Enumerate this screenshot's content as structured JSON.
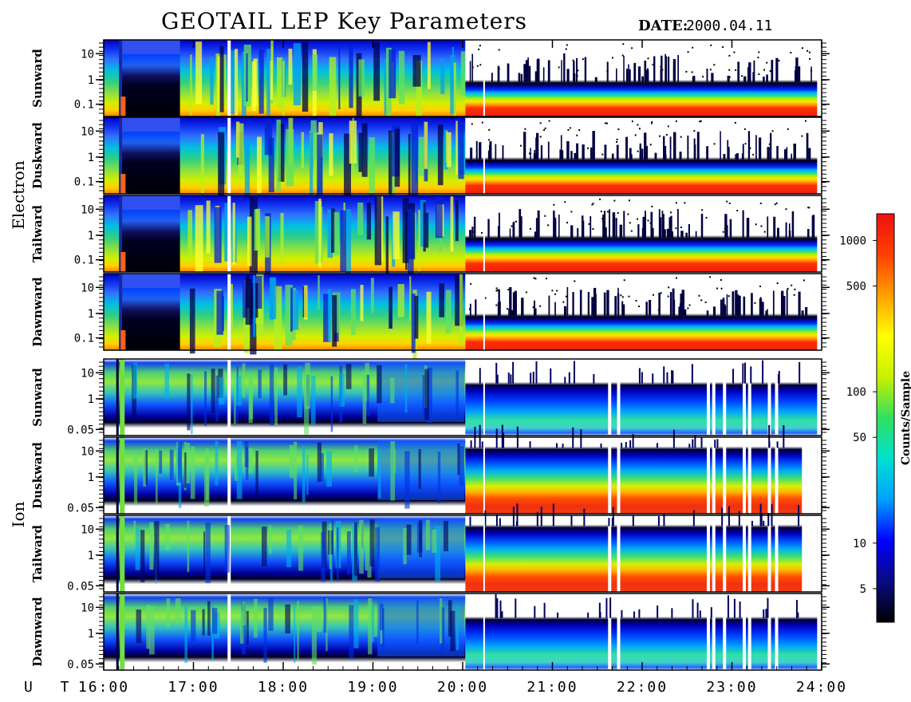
{
  "title": "GEOTAIL LEP Key Parameters",
  "date_label": "DATE:",
  "date_value": "2000.04.11",
  "time_axis_label": "U T",
  "colorbar_label": "Counts/Sample",
  "colors": {
    "colormap": [
      "#000000",
      "#0a0a80",
      "#0000ff",
      "#00a0ff",
      "#00e0d0",
      "#30e060",
      "#c8f000",
      "#ffff00",
      "#ffa000",
      "#ff4000",
      "#ee1010"
    ],
    "frame": "#000000",
    "background": "#ffffff"
  },
  "chart_data": {
    "type": "heatmap",
    "x_axis": {
      "range_hours": [
        16,
        24
      ],
      "ticks": [
        "16:00",
        "17:00",
        "18:00",
        "19:00",
        "20:00",
        "21:00",
        "22:00",
        "23:00",
        "24:00"
      ]
    },
    "colorbar": {
      "scale": "log",
      "range": [
        3,
        1500
      ],
      "ticks": [
        "1000",
        "500",
        "100",
        "50",
        "10",
        "5"
      ]
    },
    "groups": [
      {
        "name": "Electron",
        "panels": [
          {
            "name": "Sunward",
            "y_scale": "log",
            "y_ticks": [
              "10",
              "1",
              "0.1"
            ]
          },
          {
            "name": "Duskward",
            "y_scale": "log",
            "y_ticks": [
              "10",
              "1",
              "0.1"
            ]
          },
          {
            "name": "Tailward",
            "y_scale": "log",
            "y_ticks": [
              "10",
              "1",
              "0.1"
            ]
          },
          {
            "name": "Dawnward",
            "y_scale": "log",
            "y_ticks": [
              "10",
              "1",
              "0.1"
            ]
          }
        ]
      },
      {
        "name": "Ion",
        "panels": [
          {
            "name": "Sunward",
            "y_scale": "log",
            "y_ticks": [
              "10",
              "1",
              "0.05"
            ]
          },
          {
            "name": "Duskward",
            "y_scale": "log",
            "y_ticks": [
              "10",
              "1",
              "0.05"
            ]
          },
          {
            "name": "Tailward",
            "y_scale": "log",
            "y_ticks": [
              "10",
              "1",
              "0.05"
            ]
          },
          {
            "name": "Dawnward",
            "y_scale": "log",
            "y_ticks": [
              "10",
              "1",
              "0.05"
            ]
          }
        ]
      }
    ]
  }
}
